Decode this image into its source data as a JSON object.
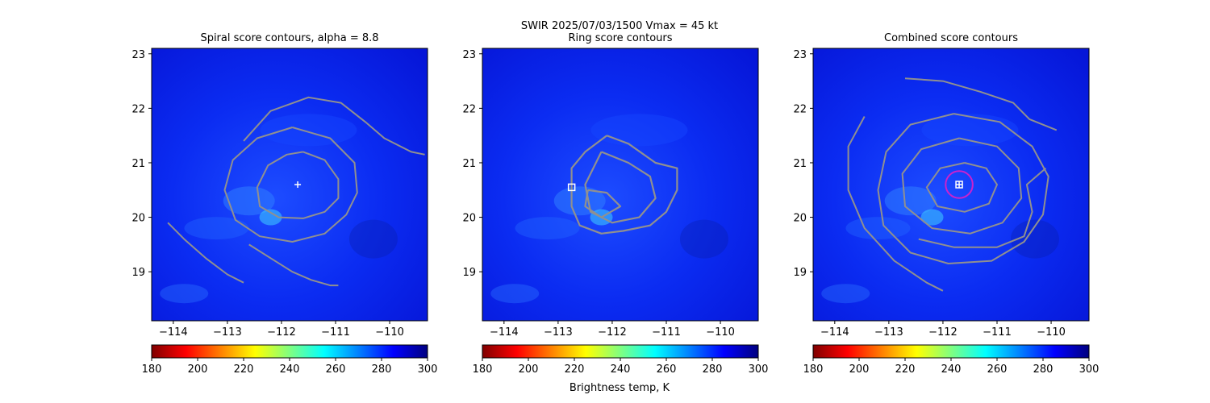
{
  "figure": {
    "suptitle_line1": "SWIR  2025/07/03/1500    Vmax = 45 kt",
    "colorbar_label": "Brightness temp, K"
  },
  "panels": [
    {
      "title": "Spiral score contours, alpha =  8.8",
      "marker": "plus"
    },
    {
      "title": "Ring score contours",
      "marker": "square"
    },
    {
      "title": "Combined score contours",
      "marker": "boxplus"
    }
  ],
  "chart_data": [
    {
      "type": "heatmap",
      "title": "Spiral score contours, alpha =  8.8",
      "xlim": [
        -114.4,
        -109.3
      ],
      "ylim": [
        18.1,
        23.1
      ],
      "xticks": [
        -114,
        -113,
        -112,
        -111,
        -110
      ],
      "yticks": [
        19,
        20,
        21,
        22,
        23
      ],
      "marker": {
        "lon": -111.7,
        "lat": 20.6,
        "symbol": "+"
      },
      "contours": [
        [
          [
            -111.6,
            21.2
          ],
          [
            -111.2,
            21.05
          ],
          [
            -110.95,
            20.7
          ],
          [
            -110.95,
            20.35
          ],
          [
            -111.2,
            20.1
          ],
          [
            -111.6,
            19.98
          ],
          [
            -112.05,
            20.0
          ],
          [
            -112.4,
            20.2
          ],
          [
            -112.45,
            20.55
          ],
          [
            -112.25,
            20.95
          ],
          [
            -111.9,
            21.15
          ],
          [
            -111.6,
            21.2
          ]
        ],
        [
          [
            -111.8,
            21.65
          ],
          [
            -111.1,
            21.45
          ],
          [
            -110.65,
            21.0
          ],
          [
            -110.6,
            20.45
          ],
          [
            -110.8,
            20.05
          ],
          [
            -111.2,
            19.7
          ],
          [
            -111.8,
            19.55
          ],
          [
            -112.4,
            19.65
          ],
          [
            -112.85,
            19.95
          ],
          [
            -113.05,
            20.5
          ],
          [
            -112.9,
            21.05
          ],
          [
            -112.45,
            21.45
          ],
          [
            -111.8,
            21.65
          ]
        ],
        [
          [
            -112.7,
            21.4
          ],
          [
            -112.2,
            21.95
          ],
          [
            -111.5,
            22.2
          ],
          [
            -110.9,
            22.1
          ],
          [
            -110.45,
            21.75
          ],
          [
            -110.1,
            21.45
          ],
          [
            -109.6,
            21.2
          ],
          [
            -109.35,
            21.15
          ]
        ],
        [
          [
            -114.1,
            19.9
          ],
          [
            -113.8,
            19.6
          ],
          [
            -113.4,
            19.25
          ],
          [
            -113.0,
            18.95
          ],
          [
            -112.7,
            18.8
          ]
        ],
        [
          [
            -112.6,
            19.5
          ],
          [
            -112.2,
            19.25
          ],
          [
            -111.8,
            19.0
          ],
          [
            -111.45,
            18.85
          ],
          [
            -111.1,
            18.75
          ],
          [
            -110.95,
            18.75
          ]
        ]
      ]
    },
    {
      "type": "heatmap",
      "title": "Ring score contours",
      "xlim": [
        -114.4,
        -109.3
      ],
      "ylim": [
        18.1,
        23.1
      ],
      "xticks": [
        -114,
        -113,
        -112,
        -111,
        -110
      ],
      "yticks": [
        19,
        20,
        21,
        22,
        23
      ],
      "marker": {
        "lon": -112.75,
        "lat": 20.55,
        "symbol": "square"
      },
      "contours": [
        [
          [
            -112.1,
            21.5
          ],
          [
            -111.7,
            21.35
          ],
          [
            -111.2,
            21.0
          ],
          [
            -110.8,
            20.9
          ],
          [
            -110.8,
            20.5
          ],
          [
            -111.0,
            20.1
          ],
          [
            -111.3,
            19.85
          ],
          [
            -111.8,
            19.75
          ],
          [
            -112.2,
            19.7
          ],
          [
            -112.6,
            19.85
          ],
          [
            -112.75,
            20.2
          ],
          [
            -112.75,
            20.9
          ],
          [
            -112.5,
            21.2
          ],
          [
            -112.1,
            21.5
          ]
        ],
        [
          [
            -112.2,
            21.2
          ],
          [
            -111.7,
            21.0
          ],
          [
            -111.3,
            20.75
          ],
          [
            -111.2,
            20.35
          ],
          [
            -111.5,
            20.0
          ],
          [
            -112.0,
            19.9
          ],
          [
            -112.4,
            20.1
          ],
          [
            -112.5,
            20.6
          ],
          [
            -112.2,
            21.2
          ]
        ],
        [
          [
            -112.45,
            20.5
          ],
          [
            -112.1,
            20.45
          ],
          [
            -111.85,
            20.2
          ],
          [
            -112.2,
            20.0
          ],
          [
            -112.5,
            20.2
          ],
          [
            -112.45,
            20.5
          ]
        ]
      ]
    },
    {
      "type": "heatmap",
      "title": "Combined score contours",
      "xlim": [
        -114.4,
        -109.3
      ],
      "ylim": [
        18.1,
        23.1
      ],
      "xticks": [
        -114,
        -113,
        -112,
        -111,
        -110
      ],
      "yticks": [
        19,
        20,
        21,
        22,
        23
      ],
      "marker": {
        "lon": -111.7,
        "lat": 20.6,
        "symbol": "boxplus"
      },
      "circle": {
        "lon": -111.7,
        "lat": 20.6,
        "radius_deg": 0.25
      },
      "contours": [
        [
          [
            -111.6,
            21.0
          ],
          [
            -111.2,
            20.9
          ],
          [
            -111.0,
            20.6
          ],
          [
            -111.15,
            20.25
          ],
          [
            -111.6,
            20.1
          ],
          [
            -112.1,
            20.2
          ],
          [
            -112.3,
            20.55
          ],
          [
            -112.05,
            20.9
          ],
          [
            -111.6,
            21.0
          ]
        ],
        [
          [
            -111.7,
            21.45
          ],
          [
            -111.0,
            21.3
          ],
          [
            -110.6,
            20.9
          ],
          [
            -110.55,
            20.35
          ],
          [
            -110.9,
            19.9
          ],
          [
            -111.5,
            19.7
          ],
          [
            -112.2,
            19.8
          ],
          [
            -112.7,
            20.2
          ],
          [
            -112.75,
            20.8
          ],
          [
            -112.4,
            21.25
          ],
          [
            -111.7,
            21.45
          ]
        ],
        [
          [
            -111.8,
            21.9
          ],
          [
            -110.95,
            21.75
          ],
          [
            -110.35,
            21.3
          ],
          [
            -110.05,
            20.75
          ],
          [
            -110.15,
            20.05
          ],
          [
            -110.5,
            19.55
          ],
          [
            -111.1,
            19.2
          ],
          [
            -111.9,
            19.15
          ],
          [
            -112.6,
            19.35
          ],
          [
            -113.1,
            19.85
          ],
          [
            -113.2,
            20.5
          ],
          [
            -113.05,
            21.2
          ],
          [
            -112.6,
            21.7
          ],
          [
            -111.8,
            21.9
          ]
        ],
        [
          [
            -112.7,
            22.55
          ],
          [
            -112.0,
            22.5
          ],
          [
            -111.3,
            22.3
          ],
          [
            -110.7,
            22.1
          ],
          [
            -110.4,
            21.8
          ],
          [
            -109.9,
            21.6
          ]
        ],
        [
          [
            -113.45,
            21.85
          ],
          [
            -113.75,
            21.3
          ],
          [
            -113.75,
            20.5
          ],
          [
            -113.45,
            19.8
          ],
          [
            -112.9,
            19.2
          ],
          [
            -112.3,
            18.8
          ],
          [
            -112.0,
            18.65
          ]
        ],
        [
          [
            -112.45,
            19.6
          ],
          [
            -111.8,
            19.45
          ],
          [
            -111.0,
            19.45
          ],
          [
            -110.5,
            19.65
          ],
          [
            -110.35,
            20.1
          ],
          [
            -110.45,
            20.6
          ],
          [
            -110.1,
            20.9
          ]
        ]
      ]
    }
  ],
  "colorbar": {
    "type": "colorbar",
    "range": [
      180,
      300
    ],
    "ticks": [
      180,
      200,
      220,
      240,
      260,
      280,
      300
    ],
    "colormap": "jet_reversed",
    "stops": [
      "#800000",
      "#ff0000",
      "#ff8000",
      "#ffff00",
      "#80ff80",
      "#00ffff",
      "#0080ff",
      "#0000ff",
      "#000080"
    ]
  },
  "colors": {
    "contour": "#909090",
    "circle": "#cc22cc",
    "marker": "#ffffff"
  }
}
